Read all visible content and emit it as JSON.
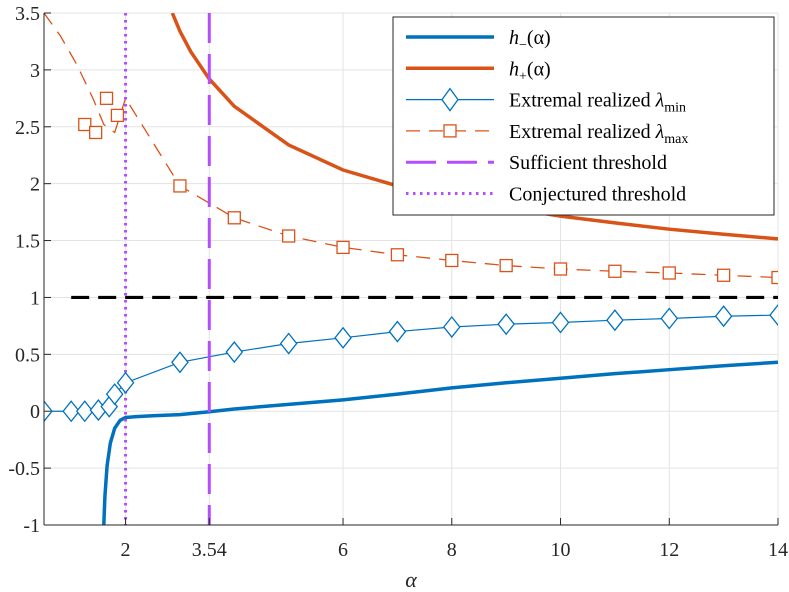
{
  "chart_data": {
    "type": "line",
    "title": "",
    "xlabel": "α",
    "ylabel": "",
    "xlim": [
      0.5,
      14
    ],
    "ylim": [
      -1,
      3.5
    ],
    "grid": true,
    "legend_position": "top-right",
    "xticks": [
      2,
      3.54,
      6,
      8,
      10,
      12,
      14
    ],
    "xtick_labels": [
      "2",
      "3.54",
      "6",
      "8",
      "10",
      "12",
      "14"
    ],
    "yticks": [
      -1,
      -0.5,
      0,
      0.5,
      1,
      1.5,
      2,
      2.5,
      3,
      3.5
    ],
    "ytick_labels": [
      "-1",
      "-0.5",
      "0",
      "0.5",
      "1",
      "1.5",
      "2",
      "2.5",
      "3",
      "3.5"
    ],
    "series": [
      {
        "name": "h−(α)",
        "legend_math": "h",
        "legend_sub": "−",
        "legend_arg": "(α)",
        "style": "solid",
        "color": "#0072BD",
        "marker": "none",
        "x": [
          1.6,
          1.62,
          1.66,
          1.72,
          1.8,
          1.9,
          2.0,
          2.2,
          2.5,
          3.0,
          3.54,
          4,
          5,
          6,
          7,
          8,
          9,
          10,
          11,
          12,
          13,
          14
        ],
        "y": [
          -1.0,
          -0.75,
          -0.48,
          -0.28,
          -0.15,
          -0.08,
          -0.055,
          -0.048,
          -0.04,
          -0.03,
          -0.005,
          0.02,
          0.06,
          0.1,
          0.15,
          0.205,
          0.25,
          0.29,
          0.33,
          0.365,
          0.4,
          0.43
        ]
      },
      {
        "name": "h+(α)",
        "legend_math": "h",
        "legend_sub": "+",
        "legend_arg": "(α)",
        "style": "solid",
        "color": "#D95319",
        "marker": "none",
        "x": [
          2.86,
          3.0,
          3.2,
          3.54,
          4.0,
          5.0,
          6.0,
          7.0,
          8.0,
          9.0,
          10.0,
          11.0,
          12.0,
          13.0,
          14.0
        ],
        "y": [
          3.5,
          3.34,
          3.16,
          2.92,
          2.68,
          2.34,
          2.12,
          1.98,
          1.87,
          1.79,
          1.715,
          1.655,
          1.6,
          1.555,
          1.515
        ]
      },
      {
        "name": "Extremal realized λmin",
        "legend_text": "Extremal realized ",
        "legend_sym": "λ",
        "legend_sub": "min",
        "style": "solid-thin",
        "color": "#0072BD",
        "marker": "diamond",
        "x": [
          0.5,
          1.0,
          1.25,
          1.5,
          1.7,
          1.8,
          2.0,
          3.0,
          4.0,
          5.0,
          6.0,
          7.0,
          8.0,
          9.0,
          10.0,
          11.0,
          12.0,
          13.0,
          14.0
        ],
        "y": [
          0.0,
          0.0,
          0.0,
          0.01,
          0.04,
          0.15,
          0.25,
          0.43,
          0.52,
          0.595,
          0.645,
          0.7,
          0.74,
          0.765,
          0.78,
          0.8,
          0.815,
          0.835,
          0.845
        ]
      },
      {
        "name": "Extremal realized λmax",
        "legend_text": "Extremal realized ",
        "legend_sym": "λ",
        "legend_sub": "max",
        "style": "dashed-thin",
        "color": "#D95319",
        "marker": "square",
        "x_curve": [
          0.5,
          0.8,
          1.1,
          1.4,
          1.6,
          1.8,
          2.0,
          3.0,
          4.0,
          5.0,
          6.0,
          7.0,
          8.0,
          9.0,
          10.0,
          11.0,
          12.0,
          13.0,
          14.0
        ],
        "y_curve": [
          3.5,
          3.3,
          3.05,
          2.75,
          2.52,
          2.45,
          2.75,
          1.98,
          1.7,
          1.54,
          1.44,
          1.375,
          1.325,
          1.28,
          1.25,
          1.23,
          1.215,
          1.195,
          1.175
        ],
        "x": [
          1.25,
          1.45,
          1.65,
          1.85,
          3.0,
          4.0,
          5.0,
          6.0,
          7.0,
          8.0,
          9.0,
          10.0,
          11.0,
          12.0,
          13.0,
          14.0
        ],
        "y": [
          2.52,
          2.45,
          2.75,
          2.6,
          1.98,
          1.7,
          1.54,
          1.44,
          1.375,
          1.325,
          1.28,
          1.25,
          1.23,
          1.215,
          1.195,
          1.175
        ]
      },
      {
        "name": "Sufficient threshold",
        "legend_text": "Sufficient threshold",
        "style": "long-dash",
        "color": "#B44CFF",
        "marker": "none",
        "vertical_x": 3.54
      },
      {
        "name": "Conjectured threshold",
        "legend_text": "Conjectured threshold",
        "style": "dotted",
        "color": "#B44CFF",
        "marker": "none",
        "vertical_x": 2.0
      }
    ],
    "reference_lines": [
      {
        "name": "y-equals-1",
        "y": 1.0,
        "x_from": 1.0,
        "x_to": 14.0,
        "style": "dashed",
        "color": "#000000"
      }
    ]
  }
}
